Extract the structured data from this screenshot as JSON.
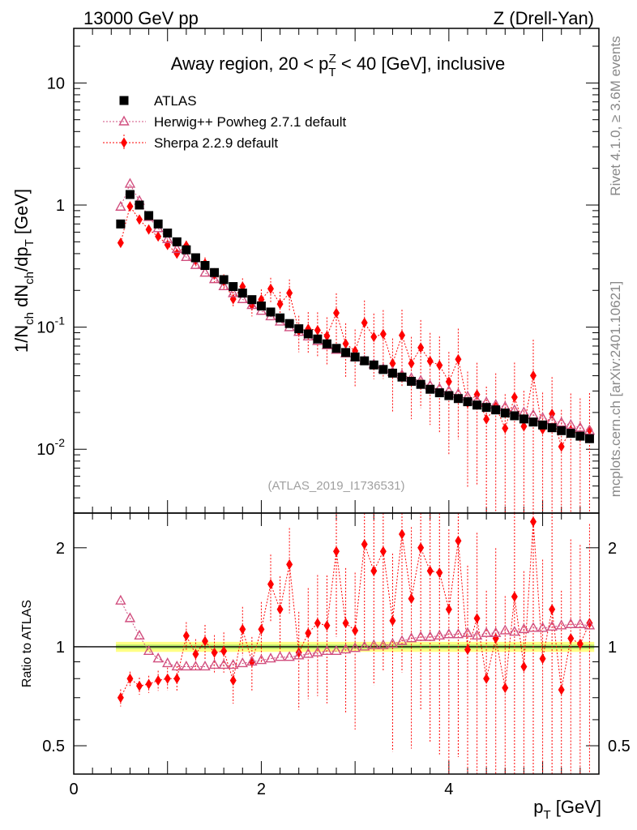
{
  "header": {
    "left": "13000 GeV pp",
    "right": "Z (Drell-Yan)"
  },
  "side_labels": {
    "rivet": "Rivet 4.1.0, ≥ 3.6M events",
    "mcplots": "mcplots.cern.ch [arXiv:2401.10621]"
  },
  "chart_data": {
    "type": "scatter",
    "title_parts": {
      "pre": "Away region, 20 < p",
      "sup": "Z",
      "sub": "T",
      "post": " < 40 [GeV], inclusive"
    },
    "analysis_id": "(ATLAS_2019_I1736531)",
    "xlabel": {
      "main": "p",
      "sub": "T",
      "unit": " [GeV]"
    },
    "ylabel_parts": [
      "1/N",
      "ch",
      " dN",
      "ch",
      "/dp",
      "T",
      " [GeV]"
    ],
    "ratio_ylabel": "Ratio to ATLAS",
    "xlim": [
      0,
      5.6
    ],
    "ylim": [
      0.003,
      28
    ],
    "ratio_ylim": [
      0.41,
      2.55
    ],
    "xticks": [
      "0",
      "2",
      "4"
    ],
    "yticks_main": [
      {
        "mant": "10",
        "exp": "-2"
      },
      {
        "mant": "10",
        "exp": "-1"
      },
      {
        "mant": "1",
        "exp": ""
      },
      {
        "mant": "10",
        "exp": ""
      }
    ],
    "yticks_ratio": [
      "0.5",
      "1",
      "2"
    ],
    "x": [
      0.5,
      0.6,
      0.7,
      0.8,
      0.9,
      1.0,
      1.1,
      1.2,
      1.3,
      1.4,
      1.5,
      1.6,
      1.7,
      1.8,
      1.9,
      2.0,
      2.1,
      2.2,
      2.3,
      2.4,
      2.5,
      2.6,
      2.7,
      2.8,
      2.9,
      3.0,
      3.1,
      3.2,
      3.3,
      3.4,
      3.5,
      3.6,
      3.7,
      3.8,
      3.9,
      4.0,
      4.1,
      4.2,
      4.3,
      4.4,
      4.5,
      4.6,
      4.7,
      4.8,
      4.9,
      5.0,
      5.1,
      5.2,
      5.3,
      5.4,
      5.5
    ],
    "series": [
      {
        "name": "ATLAS",
        "color": "#000000",
        "marker": "square",
        "values": [
          0.7,
          1.22,
          1.0,
          0.82,
          0.7,
          0.59,
          0.5,
          0.43,
          0.37,
          0.32,
          0.28,
          0.245,
          0.215,
          0.19,
          0.168,
          0.149,
          0.133,
          0.119,
          0.107,
          0.097,
          0.088,
          0.08,
          0.073,
          0.067,
          0.062,
          0.057,
          0.053,
          0.049,
          0.045,
          0.042,
          0.039,
          0.036,
          0.034,
          0.031,
          0.029,
          0.0275,
          0.026,
          0.0245,
          0.023,
          0.022,
          0.021,
          0.0198,
          0.0188,
          0.0177,
          0.0167,
          0.0158,
          0.015,
          0.0142,
          0.0135,
          0.0128,
          0.0122
        ]
      },
      {
        "name": "Herwig++ Powheg 2.7.1 default",
        "color": "#d14f7f",
        "marker": "triangle",
        "ratio": [
          1.38,
          1.22,
          1.08,
          0.97,
          0.92,
          0.89,
          0.87,
          0.87,
          0.87,
          0.87,
          0.88,
          0.88,
          0.88,
          0.89,
          0.9,
          0.91,
          0.92,
          0.93,
          0.93,
          0.94,
          0.95,
          0.96,
          0.97,
          0.97,
          0.98,
          0.99,
          1.0,
          1.01,
          1.01,
          1.02,
          1.04,
          1.06,
          1.07,
          1.07,
          1.08,
          1.09,
          1.09,
          1.1,
          1.08,
          1.1,
          1.1,
          1.12,
          1.11,
          1.13,
          1.14,
          1.14,
          1.15,
          1.16,
          1.17,
          1.17,
          1.16
        ]
      },
      {
        "name": "Sherpa 2.2.9 default",
        "color": "#ff0000",
        "marker": "diamond",
        "ratio": [
          0.7,
          0.8,
          0.76,
          0.77,
          0.79,
          0.8,
          0.8,
          1.08,
          0.95,
          1.04,
          0.96,
          0.97,
          0.79,
          1.13,
          0.9,
          1.13,
          1.55,
          1.3,
          1.78,
          0.96,
          1.1,
          1.18,
          1.16,
          1.95,
          1.18,
          1.12,
          2.05,
          1.7,
          1.95,
          1.2,
          2.2,
          1.4,
          2.0,
          1.7,
          1.68,
          1.3,
          2.1,
          0.98,
          1.22,
          0.8,
          1.06,
          0.75,
          1.42,
          0.87,
          2.4,
          0.92,
          1.3,
          0.74,
          1.06,
          1.02,
          1.18
        ],
        "rel_err": [
          0.06,
          0.05,
          0.06,
          0.06,
          0.07,
          0.08,
          0.09,
          0.1,
          0.11,
          0.12,
          0.13,
          0.14,
          0.15,
          0.17,
          0.19,
          0.21,
          0.23,
          0.26,
          0.29,
          0.33,
          0.37,
          0.4,
          0.42,
          0.45,
          0.47,
          0.5,
          0.52,
          0.55,
          0.57,
          0.6,
          0.62,
          0.65,
          0.68,
          0.7,
          0.72,
          0.75,
          0.78,
          0.8,
          0.82,
          0.85,
          0.88,
          0.9,
          0.92,
          0.95,
          0.97,
          1.0,
          1.0,
          1.0,
          1.0,
          1.0,
          1.0
        ]
      }
    ]
  }
}
